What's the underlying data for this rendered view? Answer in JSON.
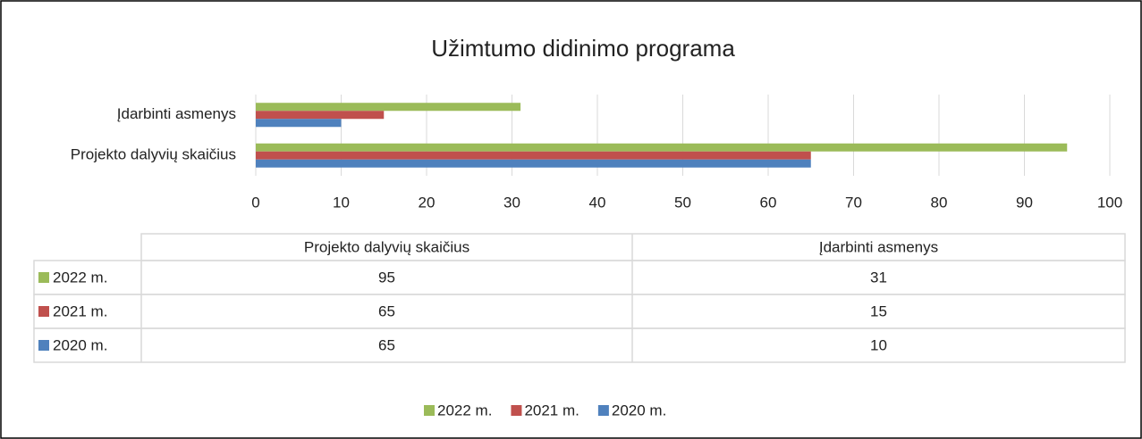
{
  "chart_data": {
    "type": "bar",
    "orientation": "horizontal",
    "title": "Užimtumo didinimo programa",
    "categories": [
      "Projekto dalyvių skaičius",
      "Įdarbinti asmenys"
    ],
    "series": [
      {
        "name": "2022 m.",
        "color": "#9bbb59",
        "values": [
          95,
          31
        ]
      },
      {
        "name": "2021 m.",
        "color": "#c0504d",
        "values": [
          65,
          15
        ]
      },
      {
        "name": "2020 m.",
        "color": "#4f81bd",
        "values": [
          65,
          10
        ]
      }
    ],
    "xlim": [
      0,
      100
    ],
    "xticks": [
      0,
      10,
      20,
      30,
      40,
      50,
      60,
      70,
      80,
      90,
      100
    ],
    "grid": true,
    "legend": "bottom",
    "data_table": true
  }
}
